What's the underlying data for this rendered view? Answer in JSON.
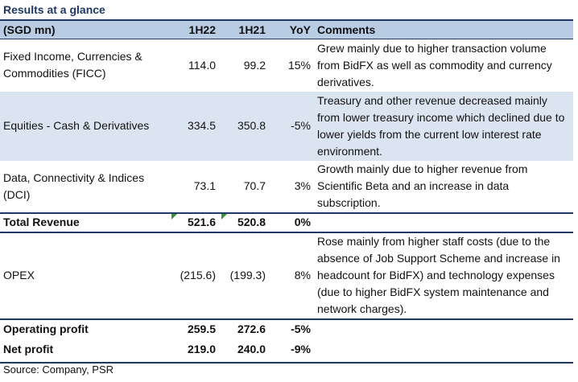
{
  "title": "Results at a glance",
  "header": {
    "label": "(SGD mn)",
    "col1": "1H22",
    "col2": "1H21",
    "col3": "YoY",
    "col4": "Comments"
  },
  "rows": [
    {
      "label": "Fixed Income, Currencies & Commodities (FICC)",
      "h22": "114.0",
      "h21": "99.2",
      "yoy": "15%",
      "comment": "Grew mainly due to higher transaction volume from BidFX as well as commodity and currency derivatives."
    },
    {
      "label": "Equities - Cash & Derivatives",
      "h22": "334.5",
      "h21": "350.8",
      "yoy": "-5%",
      "comment": "Treasury and other revenue decreased mainly from lower treasury income which declined due to lower yields from the current low interest rate environment."
    },
    {
      "label": "Data, Connectivity & Indices (DCI)",
      "h22": "73.1",
      "h21": "70.7",
      "yoy": "3%",
      "comment": "Growth mainly due to higher revenue from Scientific Beta and an increase in data subscription."
    },
    {
      "label": "Total Revenue",
      "h22": "521.6",
      "h21": "520.8",
      "yoy": "0%",
      "comment": ""
    },
    {
      "label": "OPEX",
      "h22": "(215.6)",
      "h21": "(199.3)",
      "yoy": "8%",
      "comment": "Rose mainly from higher staff costs (due to the absence of Job Support Scheme and increase in headcount for BidFX) and technology expenses (due to higher BidFX system maintenance and network charges)."
    },
    {
      "label": "Operating profit",
      "h22": "259.5",
      "h21": "272.6",
      "yoy": "-5%",
      "comment": ""
    },
    {
      "label": "Net profit",
      "h22": "219.0",
      "h21": "240.0",
      "yoy": "-9%",
      "comment": ""
    }
  ],
  "source": "Source: Company, PSR",
  "colors": {
    "header_bg": "#b8cce4",
    "shade_bg": "#dbe5f1",
    "rule": "#1f3864",
    "marker": "#3a8f3a"
  }
}
